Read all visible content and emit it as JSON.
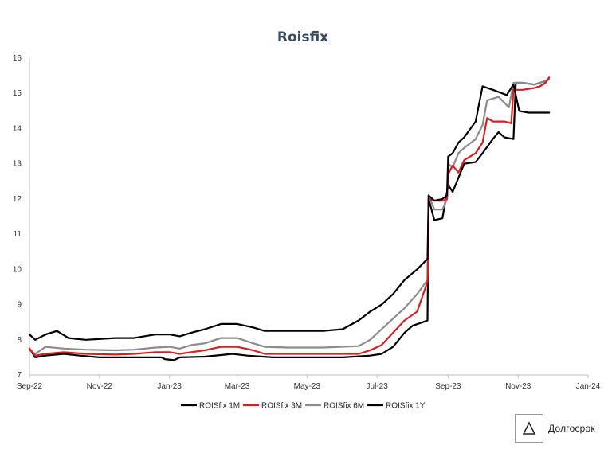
{
  "chart_data": {
    "type": "line",
    "title": "Roisfix",
    "xlabel": "",
    "ylabel": "",
    "x_start": "2022-09-01",
    "x_end": "2024-01-01",
    "ylim": [
      7,
      16
    ],
    "yticks": [
      7,
      8,
      9,
      10,
      11,
      12,
      13,
      14,
      15,
      16
    ],
    "xticks": [
      {
        "label": "Sep-22",
        "date": "2022-09-01"
      },
      {
        "label": "Nov-22",
        "date": "2022-11-01"
      },
      {
        "label": "Jan-23",
        "date": "2023-01-01"
      },
      {
        "label": "Mar-23",
        "date": "2023-03-01"
      },
      {
        "label": "May-23",
        "date": "2023-05-01"
      },
      {
        "label": "Jul-23",
        "date": "2023-07-01"
      },
      {
        "label": "Sep-23",
        "date": "2023-09-01"
      },
      {
        "label": "Nov-23",
        "date": "2023-11-01"
      },
      {
        "label": "Jan-24",
        "date": "2024-01-01"
      }
    ],
    "legend_position": "bottom",
    "series": [
      {
        "name": "ROISfix 1M",
        "color": "#000000",
        "points": [
          [
            "2022-09-01",
            7.75
          ],
          [
            "2022-09-06",
            7.5
          ],
          [
            "2022-09-15",
            7.55
          ],
          [
            "2022-10-01",
            7.6
          ],
          [
            "2022-10-15",
            7.55
          ],
          [
            "2022-11-01",
            7.5
          ],
          [
            "2022-12-01",
            7.5
          ],
          [
            "2022-12-25",
            7.5
          ],
          [
            "2022-12-28",
            7.45
          ],
          [
            "2023-01-05",
            7.42
          ],
          [
            "2023-01-10",
            7.5
          ],
          [
            "2023-02-01",
            7.52
          ],
          [
            "2023-02-25",
            7.6
          ],
          [
            "2023-03-10",
            7.55
          ],
          [
            "2023-04-01",
            7.5
          ],
          [
            "2023-05-01",
            7.5
          ],
          [
            "2023-06-01",
            7.5
          ],
          [
            "2023-06-25",
            7.55
          ],
          [
            "2023-07-05",
            7.6
          ],
          [
            "2023-07-15",
            7.8
          ],
          [
            "2023-07-25",
            8.2
          ],
          [
            "2023-08-01",
            8.4
          ],
          [
            "2023-08-10",
            8.5
          ],
          [
            "2023-08-14",
            8.55
          ],
          [
            "2023-08-15",
            12.0
          ],
          [
            "2023-08-20",
            11.4
          ],
          [
            "2023-08-27",
            11.45
          ],
          [
            "2023-08-30",
            12.0
          ],
          [
            "2023-09-01",
            12.4
          ],
          [
            "2023-09-05",
            12.2
          ],
          [
            "2023-09-10",
            12.6
          ],
          [
            "2023-09-15",
            13.0
          ],
          [
            "2023-09-25",
            13.05
          ],
          [
            "2023-10-01",
            13.3
          ],
          [
            "2023-10-10",
            13.7
          ],
          [
            "2023-10-15",
            13.9
          ],
          [
            "2023-10-20",
            13.75
          ],
          [
            "2023-10-28",
            13.7
          ],
          [
            "2023-10-30",
            15.3
          ],
          [
            "2023-11-05",
            15.3
          ],
          [
            "2023-11-15",
            15.25
          ],
          [
            "2023-11-20",
            15.3
          ],
          [
            "2023-11-25",
            15.35
          ],
          [
            "2023-11-28",
            15.4
          ]
        ]
      },
      {
        "name": "ROISfix 3M",
        "color": "#d42020",
        "points": [
          [
            "2022-09-01",
            7.75
          ],
          [
            "2022-09-06",
            7.55
          ],
          [
            "2022-09-15",
            7.6
          ],
          [
            "2022-10-01",
            7.65
          ],
          [
            "2022-10-20",
            7.6
          ],
          [
            "2022-11-15",
            7.58
          ],
          [
            "2022-12-01",
            7.6
          ],
          [
            "2022-12-20",
            7.65
          ],
          [
            "2023-01-01",
            7.65
          ],
          [
            "2023-01-10",
            7.6
          ],
          [
            "2023-01-20",
            7.65
          ],
          [
            "2023-02-01",
            7.7
          ],
          [
            "2023-02-15",
            7.8
          ],
          [
            "2023-03-01",
            7.8
          ],
          [
            "2023-03-15",
            7.7
          ],
          [
            "2023-03-25",
            7.6
          ],
          [
            "2023-04-15",
            7.6
          ],
          [
            "2023-05-15",
            7.6
          ],
          [
            "2023-06-15",
            7.6
          ],
          [
            "2023-06-25",
            7.7
          ],
          [
            "2023-07-05",
            7.85
          ],
          [
            "2023-07-15",
            8.2
          ],
          [
            "2023-07-25",
            8.55
          ],
          [
            "2023-08-05",
            8.8
          ],
          [
            "2023-08-14",
            9.65
          ],
          [
            "2023-08-15",
            12.0
          ],
          [
            "2023-08-20",
            11.95
          ],
          [
            "2023-08-27",
            11.95
          ],
          [
            "2023-08-31",
            12.0
          ],
          [
            "2023-09-01",
            12.7
          ],
          [
            "2023-09-05",
            12.95
          ],
          [
            "2023-09-10",
            12.75
          ],
          [
            "2023-09-15",
            13.1
          ],
          [
            "2023-09-25",
            13.3
          ],
          [
            "2023-10-01",
            13.6
          ],
          [
            "2023-10-05",
            14.3
          ],
          [
            "2023-10-10",
            14.2
          ],
          [
            "2023-10-20",
            14.2
          ],
          [
            "2023-10-26",
            14.15
          ],
          [
            "2023-10-28",
            15.1
          ],
          [
            "2023-11-05",
            15.1
          ],
          [
            "2023-11-15",
            15.15
          ],
          [
            "2023-11-20",
            15.2
          ],
          [
            "2023-11-25",
            15.3
          ],
          [
            "2023-11-28",
            15.45
          ]
        ]
      },
      {
        "name": "ROISfix 6M",
        "color": "#8c8c8c",
        "points": [
          [
            "2022-09-01",
            7.7
          ],
          [
            "2022-09-06",
            7.6
          ],
          [
            "2022-09-15",
            7.8
          ],
          [
            "2022-10-01",
            7.75
          ],
          [
            "2022-10-20",
            7.72
          ],
          [
            "2022-11-15",
            7.7
          ],
          [
            "2022-12-01",
            7.72
          ],
          [
            "2022-12-20",
            7.78
          ],
          [
            "2023-01-01",
            7.8
          ],
          [
            "2023-01-10",
            7.75
          ],
          [
            "2023-01-20",
            7.85
          ],
          [
            "2023-02-01",
            7.9
          ],
          [
            "2023-02-15",
            8.05
          ],
          [
            "2023-03-01",
            8.05
          ],
          [
            "2023-03-15",
            7.9
          ],
          [
            "2023-03-25",
            7.8
          ],
          [
            "2023-04-15",
            7.78
          ],
          [
            "2023-05-15",
            7.78
          ],
          [
            "2023-06-15",
            7.82
          ],
          [
            "2023-06-25",
            8.0
          ],
          [
            "2023-07-05",
            8.3
          ],
          [
            "2023-07-15",
            8.6
          ],
          [
            "2023-07-25",
            8.9
          ],
          [
            "2023-08-05",
            9.3
          ],
          [
            "2023-08-14",
            9.7
          ],
          [
            "2023-08-15",
            12.1
          ],
          [
            "2023-08-20",
            11.7
          ],
          [
            "2023-08-27",
            11.7
          ],
          [
            "2023-08-31",
            12.0
          ],
          [
            "2023-09-01",
            13.0
          ],
          [
            "2023-09-05",
            12.9
          ],
          [
            "2023-09-10",
            13.3
          ],
          [
            "2023-09-15",
            13.45
          ],
          [
            "2023-09-25",
            13.7
          ],
          [
            "2023-10-01",
            14.1
          ],
          [
            "2023-10-05",
            14.8
          ],
          [
            "2023-10-15",
            14.9
          ],
          [
            "2023-10-24",
            14.6
          ],
          [
            "2023-10-28",
            15.3
          ],
          [
            "2023-11-05",
            15.3
          ],
          [
            "2023-11-15",
            15.25
          ],
          [
            "2023-11-20",
            15.3
          ],
          [
            "2023-11-28",
            15.4
          ]
        ]
      },
      {
        "name": "ROISfix 1Y",
        "color": "#000000",
        "points": [
          [
            "2022-09-01",
            8.15
          ],
          [
            "2022-09-06",
            8.0
          ],
          [
            "2022-09-15",
            8.15
          ],
          [
            "2022-09-25",
            8.25
          ],
          [
            "2022-10-05",
            8.05
          ],
          [
            "2022-10-20",
            8.0
          ],
          [
            "2022-11-15",
            8.05
          ],
          [
            "2022-12-01",
            8.05
          ],
          [
            "2022-12-20",
            8.15
          ],
          [
            "2023-01-01",
            8.15
          ],
          [
            "2023-01-10",
            8.1
          ],
          [
            "2023-01-20",
            8.2
          ],
          [
            "2023-02-01",
            8.3
          ],
          [
            "2023-02-15",
            8.45
          ],
          [
            "2023-03-01",
            8.45
          ],
          [
            "2023-03-15",
            8.35
          ],
          [
            "2023-03-25",
            8.25
          ],
          [
            "2023-04-15",
            8.25
          ],
          [
            "2023-05-15",
            8.25
          ],
          [
            "2023-06-01",
            8.3
          ],
          [
            "2023-06-15",
            8.55
          ],
          [
            "2023-06-25",
            8.8
          ],
          [
            "2023-07-05",
            9.0
          ],
          [
            "2023-07-15",
            9.3
          ],
          [
            "2023-07-25",
            9.7
          ],
          [
            "2023-08-05",
            10.0
          ],
          [
            "2023-08-14",
            10.3
          ],
          [
            "2023-08-15",
            12.1
          ],
          [
            "2023-08-20",
            11.95
          ],
          [
            "2023-08-27",
            12.0
          ],
          [
            "2023-08-31",
            12.1
          ],
          [
            "2023-09-01",
            13.2
          ],
          [
            "2023-09-05",
            13.3
          ],
          [
            "2023-09-10",
            13.6
          ],
          [
            "2023-09-15",
            13.75
          ],
          [
            "2023-09-25",
            14.2
          ],
          [
            "2023-10-01",
            15.2
          ],
          [
            "2023-10-10",
            15.1
          ],
          [
            "2023-10-22",
            14.95
          ],
          [
            "2023-10-28",
            15.25
          ],
          [
            "2023-11-02",
            14.5
          ],
          [
            "2023-11-10",
            14.45
          ],
          [
            "2023-11-20",
            14.45
          ],
          [
            "2023-11-28",
            14.45
          ]
        ]
      }
    ]
  },
  "brand": {
    "name": "Долгосрок"
  }
}
